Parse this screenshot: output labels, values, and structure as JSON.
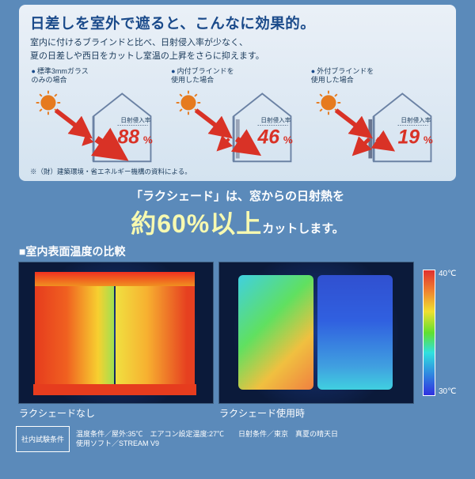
{
  "top": {
    "headline": "日差しを室外で遮ると、こんなに効果的。",
    "subline": "室内に付けるブラインドと比べ、日射侵入率が少なく、\n夏の日差しや西日をカットし室温の上昇をさらに抑えます。",
    "houses": [
      {
        "caption": "標準3mmガラス\nのみの場合",
        "rate_label": "日射侵入率",
        "rate": "88",
        "unit": "%",
        "rate_color": "#d93226",
        "arrow_in": "#d93226",
        "arrow_out": "#d93226",
        "out_scale": 1.0,
        "blind": false,
        "blind_color": ""
      },
      {
        "caption": "内付ブラインドを\n使用した場合",
        "rate_label": "日射侵入率",
        "rate": "46",
        "unit": "%",
        "rate_color": "#d93226",
        "arrow_in": "#d93226",
        "arrow_out": "#d93226",
        "out_scale": 0.65,
        "blind": true,
        "blind_color": "#9aa4b8",
        "blind_side": "in"
      },
      {
        "caption": "外付ブラインドを\n使用した場合",
        "rate_label": "日射侵入率",
        "rate": "19",
        "unit": "%",
        "rate_color": "#d93226",
        "arrow_in": "#d93226",
        "arrow_out": "#d93226",
        "out_scale": 0.35,
        "blind": true,
        "blind_color": "#6a7690",
        "blind_side": "out"
      }
    ],
    "footnote": "※（財）建築環境・省エネルギー機構の資料による。"
  },
  "claim": {
    "line1": "「ラクシェード」は、窓からの日射熱を",
    "big": "約60%以上",
    "line2_tail": "カットします。"
  },
  "compare": {
    "title": "■室内表面温度の比較",
    "left_label": "ラクシェードなし",
    "right_label": "ラクシェード使用時",
    "scale_top": "40℃",
    "scale_bottom": "30℃"
  },
  "conditions": {
    "head": "社内試験条件",
    "body": "温度条件／屋外:35℃　エアコン設定温度:27℃　　日射条件／東京　真夏の晴天日\n使用ソフト／STREAM V9"
  },
  "style": {
    "house_line": "#6b82a4",
    "sun_color": "#e67a1e",
    "text_dark": "#1a3a5a"
  }
}
